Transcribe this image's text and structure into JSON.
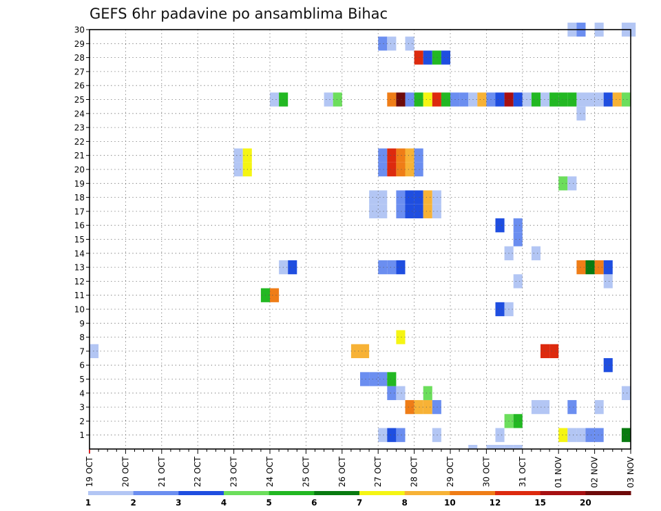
{
  "chart_data": {
    "type": "heatmap",
    "title": "GEFS 6hr padavine po ansamblima Bihac",
    "xlabel": "",
    "ylabel": "",
    "x_ticks": [
      "19 OCT",
      "20 OCT",
      "21 OCT",
      "22 OCT",
      "23 OCT",
      "24 OCT",
      "25 OCT",
      "26 OCT",
      "27 OCT",
      "28 OCT",
      "29 OCT",
      "30 OCT",
      "31 OCT",
      "01 NOV",
      "02 NOV",
      "03 NOV"
    ],
    "y_ticks": [
      "1",
      "2",
      "3",
      "4",
      "5",
      "6",
      "7",
      "8",
      "9",
      "10",
      "11",
      "12",
      "13",
      "14",
      "15",
      "16",
      "17",
      "18",
      "19",
      "20",
      "21",
      "22",
      "23",
      "24",
      "25",
      "26",
      "27",
      "28",
      "29",
      "30"
    ],
    "xlim_steps": [
      0,
      60
    ],
    "step_hours": 6,
    "ylim": [
      0,
      30
    ],
    "grid": true,
    "legend": {
      "placement": "bottom",
      "levels": [
        "1",
        "2",
        "3",
        "4",
        "5",
        "6",
        "7",
        "8",
        "10",
        "12",
        "15",
        "20"
      ],
      "colors": [
        "#b3c6f4",
        "#6b8ef0",
        "#1f4ee0",
        "#6cde5c",
        "#22b822",
        "#087a10",
        "#f5f513",
        "#f7b236",
        "#ef7d17",
        "#dd2a0e",
        "#a71012",
        "#6e0a0a"
      ]
    },
    "cells": [
      {
        "m": 1,
        "r": [
          [
            32,
            1
          ],
          [
            33,
            3
          ],
          [
            34,
            2
          ],
          [
            38,
            1
          ],
          [
            45,
            1
          ],
          [
            52,
            7
          ],
          [
            53,
            1
          ],
          [
            54,
            1
          ],
          [
            55,
            2
          ],
          [
            56,
            2
          ],
          [
            59,
            6
          ]
        ]
      },
      {
        "m": 2,
        "r": [
          [
            46,
            4
          ],
          [
            47,
            5
          ]
        ]
      },
      {
        "m": 3,
        "r": [
          [
            35,
            9
          ],
          [
            36,
            8
          ],
          [
            37,
            8
          ],
          [
            38,
            2
          ],
          [
            49,
            1
          ],
          [
            50,
            1
          ],
          [
            53,
            2
          ],
          [
            56,
            1
          ]
        ]
      },
      {
        "m": 4,
        "r": [
          [
            33,
            2
          ],
          [
            34,
            1
          ],
          [
            37,
            4
          ],
          [
            59,
            1
          ]
        ]
      },
      {
        "m": 5,
        "r": [
          [
            30,
            2
          ],
          [
            31,
            2
          ],
          [
            32,
            2
          ],
          [
            33,
            5
          ]
        ]
      },
      {
        "m": 6,
        "r": [
          [
            57,
            3
          ]
        ]
      },
      {
        "m": 7,
        "r": [
          [
            0,
            1
          ],
          [
            29,
            8
          ],
          [
            30,
            8
          ],
          [
            50,
            10
          ],
          [
            51,
            10
          ]
        ]
      },
      {
        "m": 8,
        "r": [
          [
            34,
            7
          ]
        ]
      },
      {
        "m": 10,
        "r": [
          [
            45,
            3
          ],
          [
            46,
            1
          ]
        ]
      },
      {
        "m": 11,
        "r": [
          [
            19,
            5
          ],
          [
            20,
            9
          ]
        ]
      },
      {
        "m": 12,
        "r": [
          [
            47,
            1
          ],
          [
            57,
            1
          ]
        ]
      },
      {
        "m": 13,
        "r": [
          [
            21,
            1
          ],
          [
            22,
            3
          ],
          [
            32,
            2
          ],
          [
            33,
            2
          ],
          [
            34,
            3
          ],
          [
            54,
            9
          ],
          [
            55,
            6
          ],
          [
            56,
            9
          ],
          [
            57,
            3
          ]
        ]
      },
      {
        "m": 14,
        "r": [
          [
            46,
            1
          ],
          [
            49,
            1
          ]
        ]
      },
      {
        "m": 15,
        "r": [
          [
            47,
            2
          ]
        ]
      },
      {
        "m": 16,
        "r": [
          [
            45,
            3
          ],
          [
            47,
            2
          ]
        ]
      },
      {
        "m": 17,
        "r": [
          [
            31,
            1
          ],
          [
            32,
            1
          ],
          [
            34,
            2
          ],
          [
            35,
            3
          ],
          [
            36,
            3
          ],
          [
            37,
            8
          ],
          [
            38,
            1
          ]
        ]
      },
      {
        "m": 18,
        "r": [
          [
            31,
            1
          ],
          [
            32,
            1
          ],
          [
            34,
            2
          ],
          [
            35,
            3
          ],
          [
            36,
            3
          ],
          [
            37,
            8
          ],
          [
            38,
            1
          ]
        ]
      },
      {
        "m": 19,
        "r": [
          [
            52,
            4
          ],
          [
            53,
            1
          ]
        ]
      },
      {
        "m": 20,
        "r": [
          [
            16,
            1
          ],
          [
            17,
            7
          ],
          [
            32,
            2
          ],
          [
            33,
            10
          ],
          [
            34,
            9
          ],
          [
            35,
            8
          ],
          [
            36,
            2
          ]
        ]
      },
      {
        "m": 21,
        "r": [
          [
            16,
            1
          ],
          [
            17,
            7
          ],
          [
            32,
            2
          ],
          [
            33,
            10
          ],
          [
            34,
            9
          ],
          [
            35,
            8
          ],
          [
            36,
            2
          ]
        ]
      },
      {
        "m": 24,
        "r": [
          [
            54,
            1
          ]
        ]
      },
      {
        "m": 25,
        "r": [
          [
            20,
            1
          ],
          [
            21,
            5
          ],
          [
            26,
            1
          ],
          [
            27,
            4
          ],
          [
            33,
            9
          ],
          [
            34,
            12
          ],
          [
            35,
            2
          ],
          [
            36,
            5
          ],
          [
            37,
            7
          ],
          [
            38,
            10
          ],
          [
            39,
            5
          ],
          [
            40,
            2
          ],
          [
            41,
            2
          ],
          [
            42,
            1
          ],
          [
            43,
            8
          ],
          [
            44,
            2
          ],
          [
            45,
            3
          ],
          [
            46,
            11
          ],
          [
            47,
            3
          ],
          [
            48,
            1
          ],
          [
            49,
            5
          ],
          [
            50,
            1
          ],
          [
            51,
            5
          ],
          [
            52,
            5
          ],
          [
            53,
            5
          ],
          [
            54,
            1
          ],
          [
            55,
            1
          ],
          [
            56,
            1
          ],
          [
            57,
            3
          ],
          [
            58,
            8
          ],
          [
            59,
            4
          ]
        ]
      },
      {
        "m": 28,
        "r": [
          [
            36,
            10
          ],
          [
            37,
            3
          ],
          [
            38,
            5
          ],
          [
            39,
            3
          ]
        ]
      },
      {
        "m": 29,
        "r": [
          [
            32,
            2
          ],
          [
            33,
            1
          ],
          [
            35,
            1
          ]
        ]
      },
      {
        "m": 30,
        "r": [
          [
            53,
            1
          ],
          [
            54,
            2
          ],
          [
            56,
            1
          ],
          [
            59,
            1
          ],
          [
            60,
            1
          ]
        ]
      }
    ],
    "below_axis": [
      [
        42,
        1
      ],
      [
        44,
        1
      ],
      [
        45,
        1
      ],
      [
        46,
        1
      ],
      [
        47,
        1
      ]
    ]
  }
}
